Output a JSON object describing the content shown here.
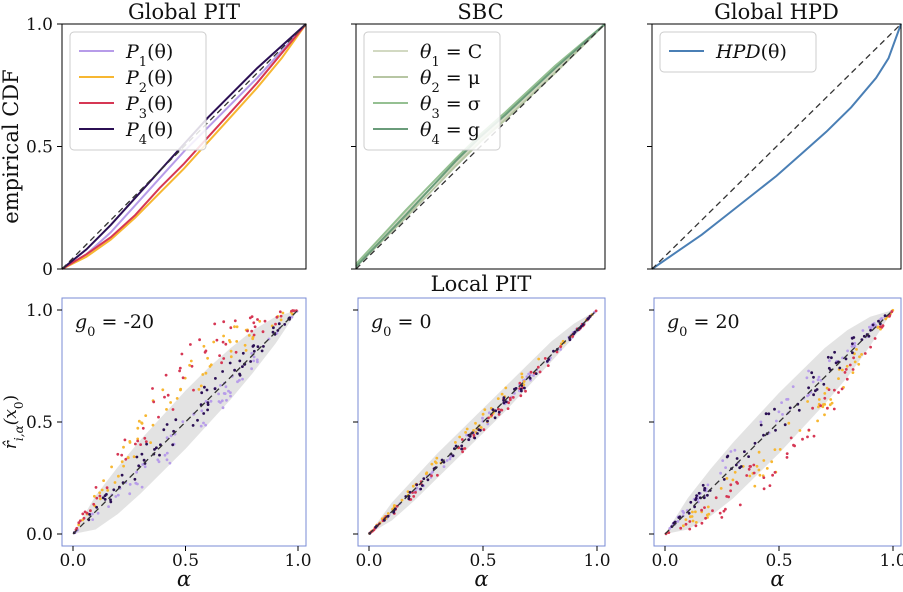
{
  "figure": {
    "suptitle_middle": "Local PIT"
  },
  "chart_data": [
    {
      "id": "global-pit",
      "type": "line",
      "title": "Global PIT",
      "xlabel": "",
      "ylabel": "empirical CDF",
      "xlim": [
        0,
        1
      ],
      "ylim": [
        0,
        1
      ],
      "yticks": [
        "0",
        "0.5",
        "1.0"
      ],
      "grid": false,
      "legend_position": "top-left",
      "reference_diagonal": true,
      "series": [
        {
          "name": "P1(θ)",
          "label_main": "P",
          "label_sub": "1",
          "label_arg": "(θ)",
          "color": "#b79ce9",
          "x": [
            0,
            0.1,
            0.2,
            0.3,
            0.4,
            0.5,
            0.6,
            0.7,
            0.8,
            0.9,
            1.0
          ],
          "y": [
            0,
            0.06,
            0.15,
            0.26,
            0.37,
            0.48,
            0.58,
            0.68,
            0.78,
            0.89,
            1.0
          ]
        },
        {
          "name": "P2(θ)",
          "label_main": "P",
          "label_sub": "2",
          "label_arg": "(θ)",
          "color": "#f7b731",
          "x": [
            0,
            0.1,
            0.2,
            0.3,
            0.4,
            0.5,
            0.6,
            0.7,
            0.8,
            0.9,
            1.0
          ],
          "y": [
            0,
            0.05,
            0.12,
            0.21,
            0.31,
            0.41,
            0.52,
            0.63,
            0.74,
            0.86,
            1.0
          ]
        },
        {
          "name": "P3(θ)",
          "label_main": "P",
          "label_sub": "3",
          "label_arg": "(θ)",
          "color": "#d63754",
          "x": [
            0,
            0.1,
            0.2,
            0.3,
            0.4,
            0.5,
            0.6,
            0.7,
            0.8,
            0.9,
            1.0
          ],
          "y": [
            0,
            0.06,
            0.13,
            0.22,
            0.33,
            0.43,
            0.54,
            0.65,
            0.76,
            0.88,
            1.0
          ]
        },
        {
          "name": "P4(θ)",
          "label_main": "P",
          "label_sub": "4",
          "label_arg": "(θ)",
          "color": "#2b0f54",
          "x": [
            0,
            0.1,
            0.2,
            0.3,
            0.4,
            0.5,
            0.6,
            0.7,
            0.8,
            0.9,
            1.0
          ],
          "y": [
            0,
            0.08,
            0.18,
            0.29,
            0.4,
            0.51,
            0.62,
            0.72,
            0.82,
            0.91,
            1.0
          ]
        }
      ]
    },
    {
      "id": "sbc",
      "type": "line",
      "title": "SBC",
      "xlim": [
        0,
        1
      ],
      "ylim": [
        0,
        1
      ],
      "legend_position": "top-left",
      "reference_diagonal": true,
      "series": [
        {
          "name": "θ1 = C",
          "label_main": "θ",
          "label_sub": "1",
          "label_arg": " = C",
          "color": "#d2d9c2",
          "x": [
            0,
            0.2,
            0.4,
            0.5,
            0.6,
            0.8,
            1.0
          ],
          "y": [
            0.02,
            0.23,
            0.43,
            0.53,
            0.62,
            0.81,
            1.0
          ]
        },
        {
          "name": "θ2 = μ",
          "label_main": "θ",
          "label_sub": "2",
          "label_arg": " = μ",
          "color": "#b7c6a3",
          "x": [
            0,
            0.2,
            0.4,
            0.5,
            0.6,
            0.8,
            1.0
          ],
          "y": [
            0.01,
            0.21,
            0.42,
            0.52,
            0.61,
            0.8,
            1.0
          ]
        },
        {
          "name": "θ3 = σ",
          "label_main": "θ",
          "label_sub": "3",
          "label_arg": " = σ",
          "color": "#95c092",
          "x": [
            0,
            0.2,
            0.4,
            0.5,
            0.6,
            0.8,
            1.0
          ],
          "y": [
            0.02,
            0.24,
            0.45,
            0.55,
            0.64,
            0.83,
            1.0
          ]
        },
        {
          "name": "θ4 = g",
          "label_main": "θ",
          "label_sub": "4",
          "label_arg": " = g",
          "color": "#6a9c7a",
          "x": [
            0,
            0.2,
            0.4,
            0.5,
            0.6,
            0.8,
            1.0
          ],
          "y": [
            0.01,
            0.22,
            0.44,
            0.54,
            0.63,
            0.82,
            1.0
          ]
        }
      ]
    },
    {
      "id": "global-hpd",
      "type": "line",
      "title": "Global HPD",
      "xlim": [
        0,
        1
      ],
      "ylim": [
        0,
        1
      ],
      "legend_position": "top-left",
      "reference_diagonal": true,
      "series": [
        {
          "name": "HPD(θ)",
          "label_main": "HPD",
          "label_sub": "",
          "label_arg": "(θ)",
          "color": "#4a7fb5",
          "x": [
            0,
            0.1,
            0.2,
            0.3,
            0.4,
            0.5,
            0.6,
            0.7,
            0.8,
            0.9,
            0.95,
            1.0
          ],
          "y": [
            0,
            0.07,
            0.14,
            0.22,
            0.3,
            0.38,
            0.47,
            0.56,
            0.66,
            0.78,
            0.86,
            1.0
          ]
        }
      ]
    },
    {
      "id": "local-pit-g-20",
      "type": "scatter",
      "annotation": "-20",
      "annotation_prefix": "g",
      "annotation_sub": "0",
      "xlabel": "α",
      "ylabel": "r̂i,α(x0)",
      "ylabel_main": "r̂",
      "ylabel_sub": "i,α",
      "ylabel_arg": "(x",
      "ylabel_arg_sub": "0",
      "ylabel_close": ")",
      "xlim": [
        0,
        1
      ],
      "ylim": [
        0,
        1
      ],
      "xticks": [
        "0.0",
        "0.5",
        "1.0"
      ],
      "yticks": [
        "0.0",
        "0.5",
        "1.0"
      ],
      "reference_diagonal": true,
      "band": {
        "x": [
          0,
          0.1,
          0.2,
          0.3,
          0.4,
          0.5,
          0.6,
          0.7,
          0.8,
          0.9,
          1.0
        ],
        "lower": [
          0,
          0.02,
          0.09,
          0.18,
          0.28,
          0.38,
          0.49,
          0.6,
          0.72,
          0.85,
          1.0
        ],
        "upper": [
          0,
          0.17,
          0.3,
          0.42,
          0.53,
          0.64,
          0.74,
          0.83,
          0.91,
          0.97,
          1.0
        ]
      },
      "series": [
        {
          "name": "P1(θ)",
          "color": "#b79ce9",
          "shift": -0.05,
          "spread": 0.07
        },
        {
          "name": "P2(θ)",
          "color": "#f7b731",
          "shift": 0.17,
          "spread": 0.1
        },
        {
          "name": "P3(θ)",
          "color": "#d63754",
          "shift": 0.22,
          "spread": 0.12
        },
        {
          "name": "P4(θ)",
          "color": "#2b0f54",
          "shift": 0.02,
          "spread": 0.07
        }
      ]
    },
    {
      "id": "local-pit-g0",
      "type": "scatter",
      "annotation": "0",
      "annotation_prefix": "g",
      "annotation_sub": "0",
      "xlabel": "α",
      "xlim": [
        0,
        1
      ],
      "ylim": [
        0,
        1
      ],
      "xticks": [
        "0.0",
        "0.5",
        "1.0"
      ],
      "reference_diagonal": true,
      "band": {
        "x": [
          0,
          0.1,
          0.2,
          0.3,
          0.4,
          0.5,
          0.6,
          0.7,
          0.8,
          0.9,
          1.0
        ],
        "lower": [
          0,
          0.06,
          0.15,
          0.25,
          0.35,
          0.45,
          0.55,
          0.66,
          0.77,
          0.88,
          1.0
        ],
        "upper": [
          0,
          0.14,
          0.25,
          0.36,
          0.46,
          0.56,
          0.66,
          0.76,
          0.86,
          0.94,
          1.0
        ]
      },
      "series": [
        {
          "name": "P1(θ)",
          "color": "#b79ce9",
          "shift": -0.01,
          "spread": 0.03
        },
        {
          "name": "P2(θ)",
          "color": "#f7b731",
          "shift": 0.02,
          "spread": 0.04
        },
        {
          "name": "P3(θ)",
          "color": "#d63754",
          "shift": -0.02,
          "spread": 0.04
        },
        {
          "name": "P4(θ)",
          "color": "#2b0f54",
          "shift": -0.01,
          "spread": 0.03
        }
      ]
    },
    {
      "id": "local-pit-g20",
      "type": "scatter",
      "annotation": "20",
      "annotation_prefix": "g",
      "annotation_sub": "0",
      "xlabel": "α",
      "xlim": [
        0,
        1
      ],
      "ylim": [
        0,
        1
      ],
      "xticks": [
        "0.0",
        "0.5",
        "1.0"
      ],
      "reference_diagonal": true,
      "band": {
        "x": [
          0,
          0.1,
          0.2,
          0.3,
          0.4,
          0.5,
          0.6,
          0.7,
          0.8,
          0.9,
          1.0
        ],
        "lower": [
          0,
          0.02,
          0.08,
          0.16,
          0.26,
          0.36,
          0.47,
          0.58,
          0.7,
          0.84,
          1.0
        ],
        "upper": [
          0,
          0.16,
          0.29,
          0.41,
          0.52,
          0.63,
          0.73,
          0.83,
          0.91,
          0.97,
          1.0
        ]
      },
      "series": [
        {
          "name": "P1(θ)",
          "color": "#b79ce9",
          "shift": 0.05,
          "spread": 0.06
        },
        {
          "name": "P2(θ)",
          "color": "#f7b731",
          "shift": -0.12,
          "spread": 0.09
        },
        {
          "name": "P3(θ)",
          "color": "#d63754",
          "shift": -0.16,
          "spread": 0.1
        },
        {
          "name": "P4(θ)",
          "color": "#2b0f54",
          "shift": 0.03,
          "spread": 0.07
        }
      ]
    }
  ]
}
